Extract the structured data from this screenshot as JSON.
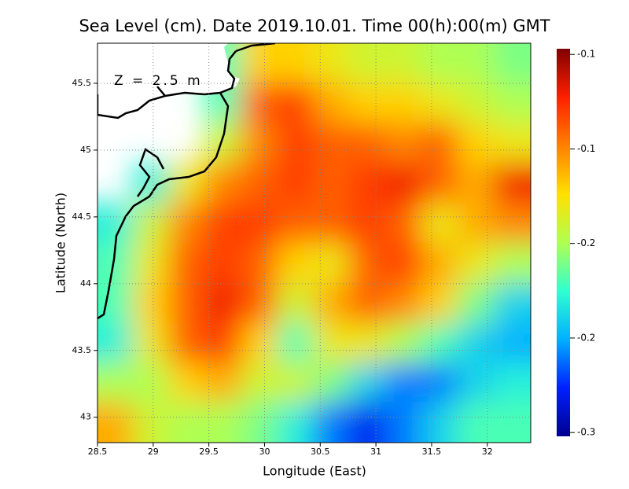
{
  "chart_data": {
    "type": "heatmap",
    "title": "Sea Level (cm). Date 2019.10.01. Time 00(h):00(m) GMT",
    "annotation": "Z = 2.5 m",
    "x_label": "Longitude (East)",
    "y_label": "Latitude (North)",
    "xlim": [
      28.5,
      32.39
    ],
    "ylim": [
      42.81,
      45.8
    ],
    "xticks": [
      28.5,
      29,
      29.5,
      30,
      30.5,
      31,
      31.5,
      32
    ],
    "yticks": [
      43,
      43.5,
      44,
      44.5,
      45,
      45.5
    ],
    "grid": true,
    "x": [
      28.66,
      28.99,
      29.31,
      29.63,
      29.96,
      30.28,
      30.61,
      30.93,
      31.25,
      31.58,
      31.9,
      32.23
    ],
    "y": [
      45.65,
      45.35,
      45.05,
      44.75,
      44.45,
      44.15,
      43.85,
      43.55,
      43.25,
      42.96
    ],
    "z": [
      [
        null,
        null,
        null,
        -0.21,
        -0.16,
        -0.16,
        -0.17,
        -0.18,
        -0.18,
        -0.19,
        -0.19,
        -0.2
      ],
      [
        null,
        null,
        null,
        -0.21,
        -0.13,
        -0.12,
        -0.15,
        -0.16,
        -0.16,
        -0.17,
        -0.18,
        -0.19
      ],
      [
        null,
        null,
        null,
        -0.18,
        -0.14,
        -0.12,
        -0.13,
        -0.13,
        -0.14,
        -0.13,
        -0.16,
        -0.17
      ],
      [
        null,
        -0.22,
        -0.17,
        -0.14,
        -0.13,
        -0.12,
        -0.13,
        -0.12,
        -0.11,
        -0.13,
        -0.15,
        -0.11
      ],
      [
        -0.22,
        -0.18,
        -0.14,
        -0.12,
        -0.12,
        -0.13,
        -0.13,
        -0.12,
        -0.13,
        -0.17,
        -0.15,
        -0.14
      ],
      [
        -0.21,
        -0.17,
        -0.13,
        -0.12,
        -0.13,
        -0.16,
        -0.17,
        -0.13,
        -0.12,
        -0.15,
        -0.17,
        -0.19
      ],
      [
        -0.21,
        -0.16,
        -0.13,
        -0.11,
        -0.13,
        -0.18,
        -0.15,
        -0.13,
        -0.14,
        -0.16,
        -0.2,
        -0.23
      ],
      [
        -0.22,
        -0.17,
        -0.13,
        -0.12,
        -0.16,
        -0.21,
        -0.17,
        -0.17,
        -0.19,
        -0.21,
        -0.23,
        -0.24
      ],
      [
        -0.19,
        -0.19,
        -0.16,
        -0.15,
        -0.18,
        -0.18,
        -0.2,
        -0.23,
        -0.25,
        -0.25,
        -0.23,
        -0.22
      ],
      [
        -0.15,
        -0.18,
        -0.19,
        -0.19,
        -0.2,
        -0.22,
        -0.25,
        -0.27,
        -0.25,
        -0.23,
        -0.21,
        -0.21
      ]
    ],
    "clim": [
      -0.292,
      -0.087
    ],
    "cticks": [
      {
        "value": -0.29,
        "label": "-0.3"
      },
      {
        "value": -0.24,
        "label": "-0.2"
      },
      {
        "value": -0.19,
        "label": "-0.2"
      },
      {
        "value": -0.14,
        "label": "-0.1"
      },
      {
        "value": -0.09,
        "label": "-0.1"
      }
    ],
    "colormap": [
      "#00008f",
      "#0020ff",
      "#00b0ff",
      "#30ffd0",
      "#b0ff50",
      "#ffe000",
      "#ff8000",
      "#ff2000",
      "#800000"
    ]
  }
}
